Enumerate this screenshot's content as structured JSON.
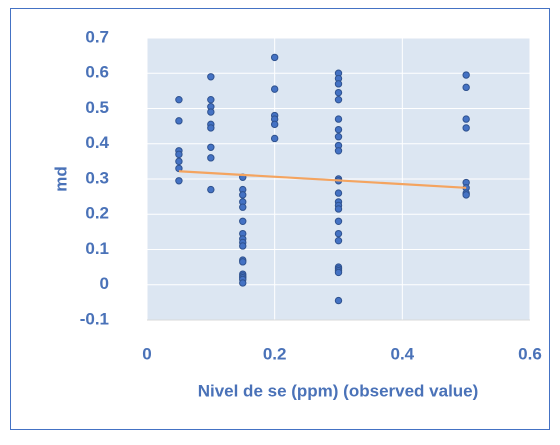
{
  "chart_data": {
    "type": "scatter",
    "x_label": "Nivel de se (ppm) (observed value)",
    "y_label": "md",
    "x": [
      0.05,
      0.05,
      0.05,
      0.05,
      0.05,
      0.05,
      0.05,
      0.1,
      0.1,
      0.1,
      0.1,
      0.1,
      0.1,
      0.1,
      0.1,
      0.1,
      0.15,
      0.15,
      0.15,
      0.15,
      0.15,
      0.15,
      0.15,
      0.15,
      0.15,
      0.15,
      0.15,
      0.15,
      0.15,
      0.15,
      0.15,
      0.15,
      0.15,
      0.2,
      0.2,
      0.2,
      0.2,
      0.2,
      0.2,
      0.3,
      0.3,
      0.3,
      0.3,
      0.3,
      0.3,
      0.3,
      0.3,
      0.3,
      0.3,
      0.3,
      0.3,
      0.3,
      0.3,
      0.3,
      0.3,
      0.3,
      0.3,
      0.3,
      0.3,
      0.3,
      0.3,
      0.3,
      0.3,
      0.5,
      0.5,
      0.5,
      0.5,
      0.5,
      0.5,
      0.5,
      0.5
    ],
    "values": [
      0.525,
      0.465,
      0.38,
      0.37,
      0.35,
      0.33,
      0.295,
      0.59,
      0.525,
      0.505,
      0.49,
      0.455,
      0.445,
      0.39,
      0.36,
      0.27,
      0.305,
      0.27,
      0.255,
      0.235,
      0.22,
      0.18,
      0.145,
      0.13,
      0.12,
      0.11,
      0.07,
      0.065,
      0.03,
      0.025,
      0.02,
      0.015,
      0.005,
      0.645,
      0.555,
      0.48,
      0.47,
      0.455,
      0.415,
      0.6,
      0.585,
      0.57,
      0.545,
      0.525,
      0.47,
      0.44,
      0.42,
      0.395,
      0.38,
      0.3,
      0.295,
      0.26,
      0.235,
      0.225,
      0.215,
      0.18,
      0.145,
      0.125,
      0.05,
      0.045,
      0.04,
      0.035,
      -0.045,
      0.595,
      0.56,
      0.47,
      0.445,
      0.29,
      0.275,
      0.26,
      0.255
    ],
    "color": "#4472c4",
    "trendline": {
      "x": [
        0.05,
        0.5
      ],
      "values": [
        0.322,
        0.275
      ],
      "color": "#f4a460"
    },
    "xlim": [
      0,
      0.6
    ],
    "xticks": [
      0,
      0.2,
      0.4,
      0.6
    ],
    "ylim": [
      -0.1,
      0.7
    ],
    "yticks": [
      -0.1,
      0,
      0.1,
      0.2,
      0.3,
      0.4,
      0.5,
      0.6,
      0.7
    ],
    "grid": true
  }
}
